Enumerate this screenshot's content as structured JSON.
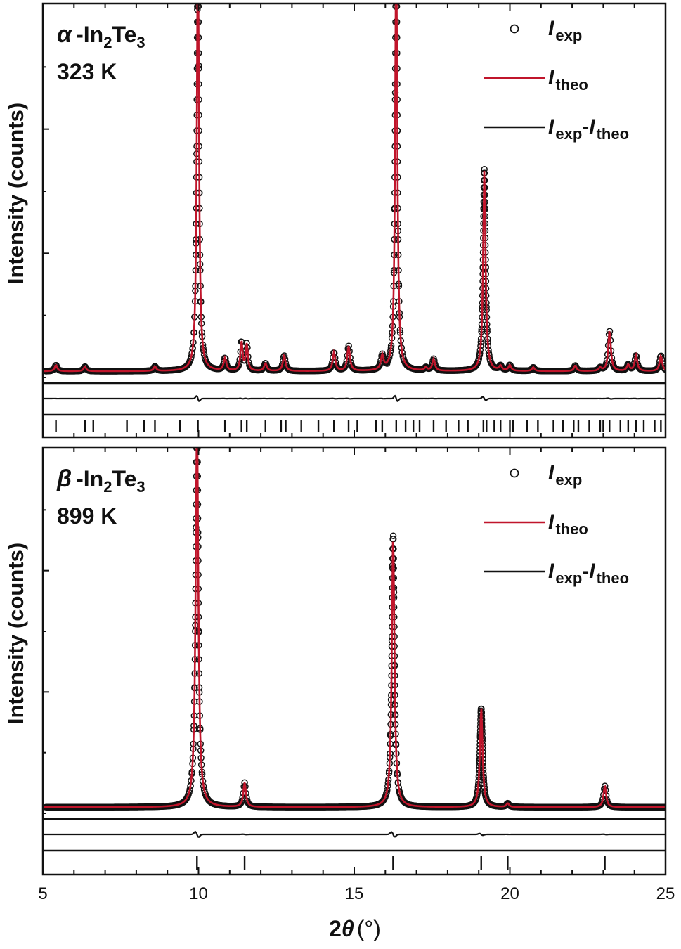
{
  "chart_data": [
    {
      "type": "line",
      "panel": "top",
      "phase_symbol": "α",
      "phase_formula": {
        "base": "-In",
        "sub1": "2",
        "mid": "Te",
        "sub2": "3"
      },
      "temperature": "323 K",
      "ylabel": "Intensity (counts)",
      "xlim": [
        5,
        25
      ],
      "ylim": [
        0,
        1.2
      ],
      "legend": {
        "placement": "top-right",
        "entries": [
          {
            "italic": "I",
            "sub": "exp"
          },
          {
            "italic": "I",
            "sub": "theo"
          },
          {
            "italic": "I",
            "sub": "exp",
            "sep": "-",
            "italic2": "I",
            "sub2": "theo"
          }
        ]
      },
      "colors": {
        "exp": "#111111",
        "theo": "#c0152b",
        "diff": "#111111",
        "bragg": "#111111"
      },
      "background": 0.02,
      "peaks": [
        {
          "x": 5.42,
          "h": 0.02,
          "w": 0.05
        },
        {
          "x": 6.35,
          "h": 0.015,
          "w": 0.05
        },
        {
          "x": 8.6,
          "h": 0.015,
          "w": 0.05
        },
        {
          "x": 9.98,
          "h": 1.4,
          "w": 0.04
        },
        {
          "x": 10.85,
          "h": 0.04,
          "w": 0.05
        },
        {
          "x": 11.38,
          "h": 0.095,
          "w": 0.04
        },
        {
          "x": 11.55,
          "h": 0.085,
          "w": 0.04
        },
        {
          "x": 12.15,
          "h": 0.025,
          "w": 0.05
        },
        {
          "x": 12.75,
          "h": 0.05,
          "w": 0.05
        },
        {
          "x": 14.35,
          "h": 0.06,
          "w": 0.05
        },
        {
          "x": 14.82,
          "h": 0.08,
          "w": 0.05
        },
        {
          "x": 15.9,
          "h": 0.045,
          "w": 0.05
        },
        {
          "x": 16.35,
          "h": 1.4,
          "w": 0.04
        },
        {
          "x": 17.3,
          "h": 0.01,
          "w": 0.05
        },
        {
          "x": 17.55,
          "h": 0.038,
          "w": 0.05
        },
        {
          "x": 19.18,
          "h": 0.65,
          "w": 0.045
        },
        {
          "x": 19.7,
          "h": 0.015,
          "w": 0.05
        },
        {
          "x": 20.0,
          "h": 0.018,
          "w": 0.05
        },
        {
          "x": 20.75,
          "h": 0.012,
          "w": 0.05
        },
        {
          "x": 22.1,
          "h": 0.018,
          "w": 0.05
        },
        {
          "x": 22.9,
          "h": 0.01,
          "w": 0.05
        },
        {
          "x": 23.2,
          "h": 0.13,
          "w": 0.05
        },
        {
          "x": 23.8,
          "h": 0.02,
          "w": 0.05
        },
        {
          "x": 24.05,
          "h": 0.05,
          "w": 0.05
        },
        {
          "x": 24.85,
          "h": 0.05,
          "w": 0.05
        }
      ],
      "bragg_positions": [
        5.42,
        6.35,
        6.62,
        7.7,
        8.25,
        8.6,
        9.4,
        9.98,
        10.85,
        11.38,
        11.55,
        12.15,
        12.65,
        12.8,
        13.3,
        13.85,
        14.35,
        14.82,
        15.1,
        15.7,
        15.9,
        16.35,
        16.65,
        16.9,
        17.1,
        17.55,
        17.95,
        18.35,
        18.65,
        19.15,
        19.25,
        19.5,
        19.7,
        20.0,
        20.1,
        20.55,
        20.9,
        21.4,
        21.7,
        22.05,
        22.2,
        22.55,
        22.9,
        23.0,
        23.2,
        23.55,
        23.8,
        24.05,
        24.3,
        24.65,
        24.85
      ]
    },
    {
      "type": "line",
      "panel": "bottom",
      "phase_symbol": "β",
      "phase_formula": {
        "base": "-In",
        "sub1": "2",
        "mid": "Te",
        "sub2": "3"
      },
      "temperature": "899 K",
      "ylabel": "Intensity (counts)",
      "xlabel": {
        "prefix": "2",
        "symbol": "θ",
        "unit": "(°)"
      },
      "xlim": [
        5,
        25
      ],
      "ylim": [
        0,
        1.2
      ],
      "xticks": [
        5,
        10,
        15,
        20,
        25
      ],
      "legend": {
        "placement": "top-right",
        "entries": [
          {
            "italic": "I",
            "sub": "exp"
          },
          {
            "italic": "I",
            "sub": "theo"
          },
          {
            "italic": "I",
            "sub": "exp",
            "sep": "-",
            "italic2": "I",
            "sub2": "theo"
          }
        ]
      },
      "colors": {
        "exp": "#111111",
        "theo": "#c0152b",
        "diff": "#111111",
        "bragg": "#111111"
      },
      "background": 0.02,
      "peaks": [
        {
          "x": 9.95,
          "h": 1.3,
          "w": 0.05
        },
        {
          "x": 11.48,
          "h": 0.08,
          "w": 0.05
        },
        {
          "x": 16.25,
          "h": 0.9,
          "w": 0.05
        },
        {
          "x": 19.08,
          "h": 0.33,
          "w": 0.05
        },
        {
          "x": 19.93,
          "h": 0.012,
          "w": 0.05
        },
        {
          "x": 23.05,
          "h": 0.07,
          "w": 0.05
        }
      ],
      "bragg_positions": [
        9.95,
        11.48,
        16.25,
        19.08,
        19.93,
        23.05
      ]
    }
  ]
}
